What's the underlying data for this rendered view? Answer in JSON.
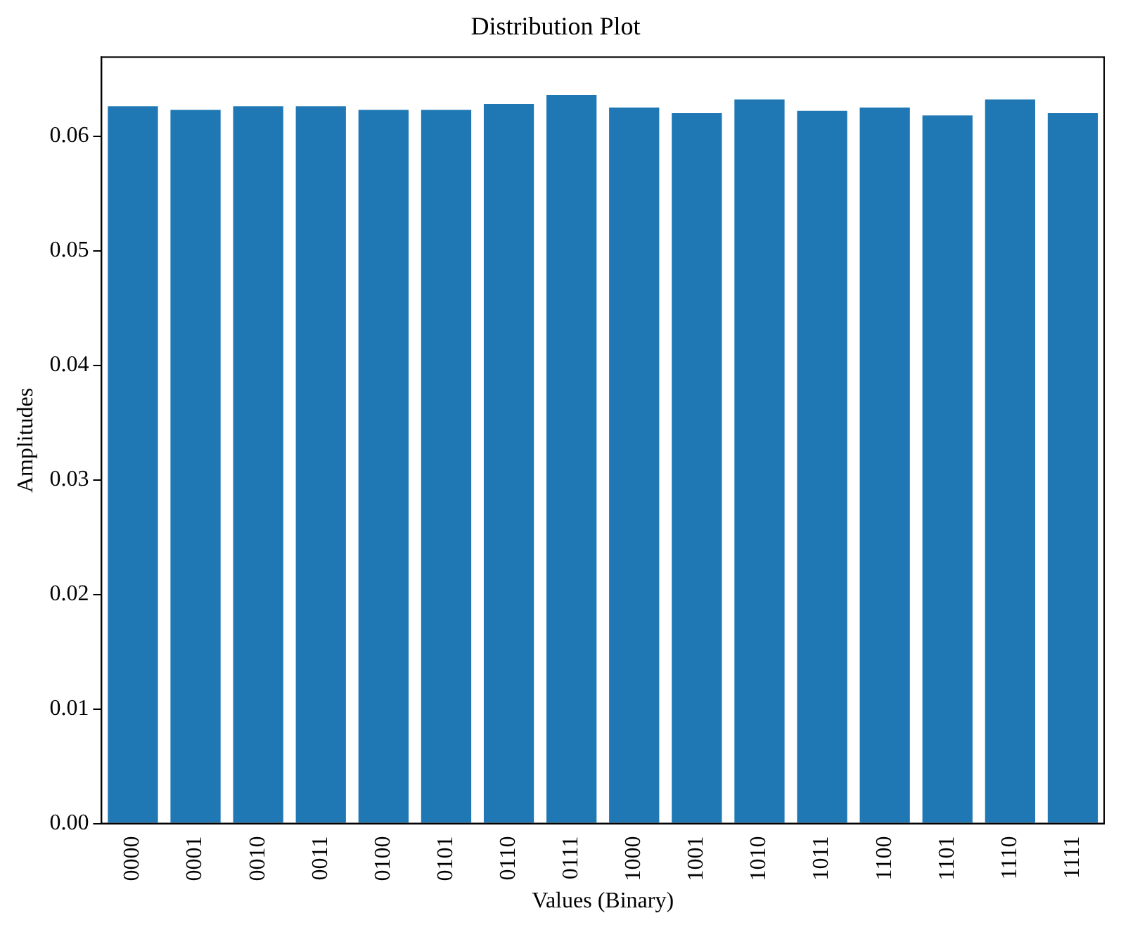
{
  "chart_data": {
    "type": "bar",
    "title": "Distribution Plot",
    "xlabel": "Values (Binary)",
    "ylabel": "Amplitudes",
    "categories": [
      "0000",
      "0001",
      "0010",
      "0011",
      "0100",
      "0101",
      "0110",
      "0111",
      "1000",
      "1001",
      "1010",
      "1011",
      "1100",
      "1101",
      "1110",
      "1111"
    ],
    "values": [
      0.0626,
      0.0623,
      0.0626,
      0.0626,
      0.0623,
      0.0623,
      0.0628,
      0.0636,
      0.0625,
      0.062,
      0.0632,
      0.0622,
      0.0625,
      0.0618,
      0.0632,
      0.062
    ],
    "color": "#1f77b4",
    "ylim": [
      0,
      0.0669
    ],
    "yticks": [
      {
        "value": 0,
        "label": "0.00"
      },
      {
        "value": 0.01,
        "label": "0.01"
      },
      {
        "value": 0.02,
        "label": "0.02"
      },
      {
        "value": 0.03,
        "label": "0.03"
      },
      {
        "value": 0.04,
        "label": "0.04"
      },
      {
        "value": 0.05,
        "label": "0.05"
      },
      {
        "value": 0.06,
        "label": "0.06"
      }
    ],
    "grid": false,
    "legend": false
  }
}
